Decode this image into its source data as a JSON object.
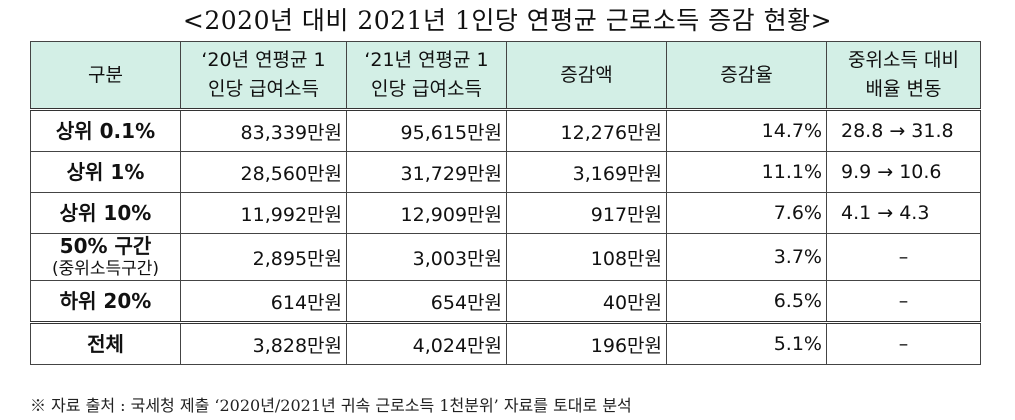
{
  "title": "<2020년 대비 2021년 1인당 연평균 근로소득 증감 현황>",
  "headers": [
    {
      "line1": "구분",
      "line2": ""
    },
    {
      "line1": "‘20년 연평균 1",
      "line2": "인당 급여소득"
    },
    {
      "line1": "‘21년 연평균 1",
      "line2": "인당 급여소득"
    },
    {
      "line1": "증감액",
      "line2": ""
    },
    {
      "line1": "증감율",
      "line2": ""
    },
    {
      "line1": "중위소득 대비",
      "line2": "배율 변동"
    }
  ],
  "rows": [
    {
      "category": "상위 0.1%",
      "sub": "",
      "y2020": "83,339만원",
      "y2021": "95,615만원",
      "diff": "12,276만원",
      "rate": "14.7%",
      "ratio": "28.8 → 31.8",
      "highlight": true
    },
    {
      "category": "상위 1%",
      "sub": "",
      "y2020": "28,560만원",
      "y2021": "31,729만원",
      "diff": "3,169만원",
      "rate": "11.1%",
      "ratio": "9.9 → 10.6",
      "highlight": true
    },
    {
      "category": "상위 10%",
      "sub": "",
      "y2020": "11,992만원",
      "y2021": "12,909만원",
      "diff": "917만원",
      "rate": "7.6%",
      "ratio": "4.1 → 4.3",
      "highlight": false
    },
    {
      "category": "50% 구간",
      "sub": "(중위소득구간)",
      "y2020": "2,895만원",
      "y2021": "3,003만원",
      "diff": "108만원",
      "rate": "3.7%",
      "ratio": "–",
      "highlight": false
    },
    {
      "category": "하위 20%",
      "sub": "",
      "y2020": "614만원",
      "y2021": "654만원",
      "diff": "40만원",
      "rate": "6.5%",
      "ratio": "–",
      "highlight": true
    },
    {
      "category": "전체",
      "sub": "",
      "y2020": "3,828만원",
      "y2021": "4,024만원",
      "diff": "196만원",
      "rate": "5.1%",
      "ratio": "–",
      "highlight": false
    }
  ],
  "note": "※ 자료 출처 : 국세청 제출 ‘2020년/2021년 귀속 근로소득 1천분위’ 자료를 토대로 분석",
  "colors": {
    "header_bg": "#d3efe6",
    "border": "#444444"
  }
}
